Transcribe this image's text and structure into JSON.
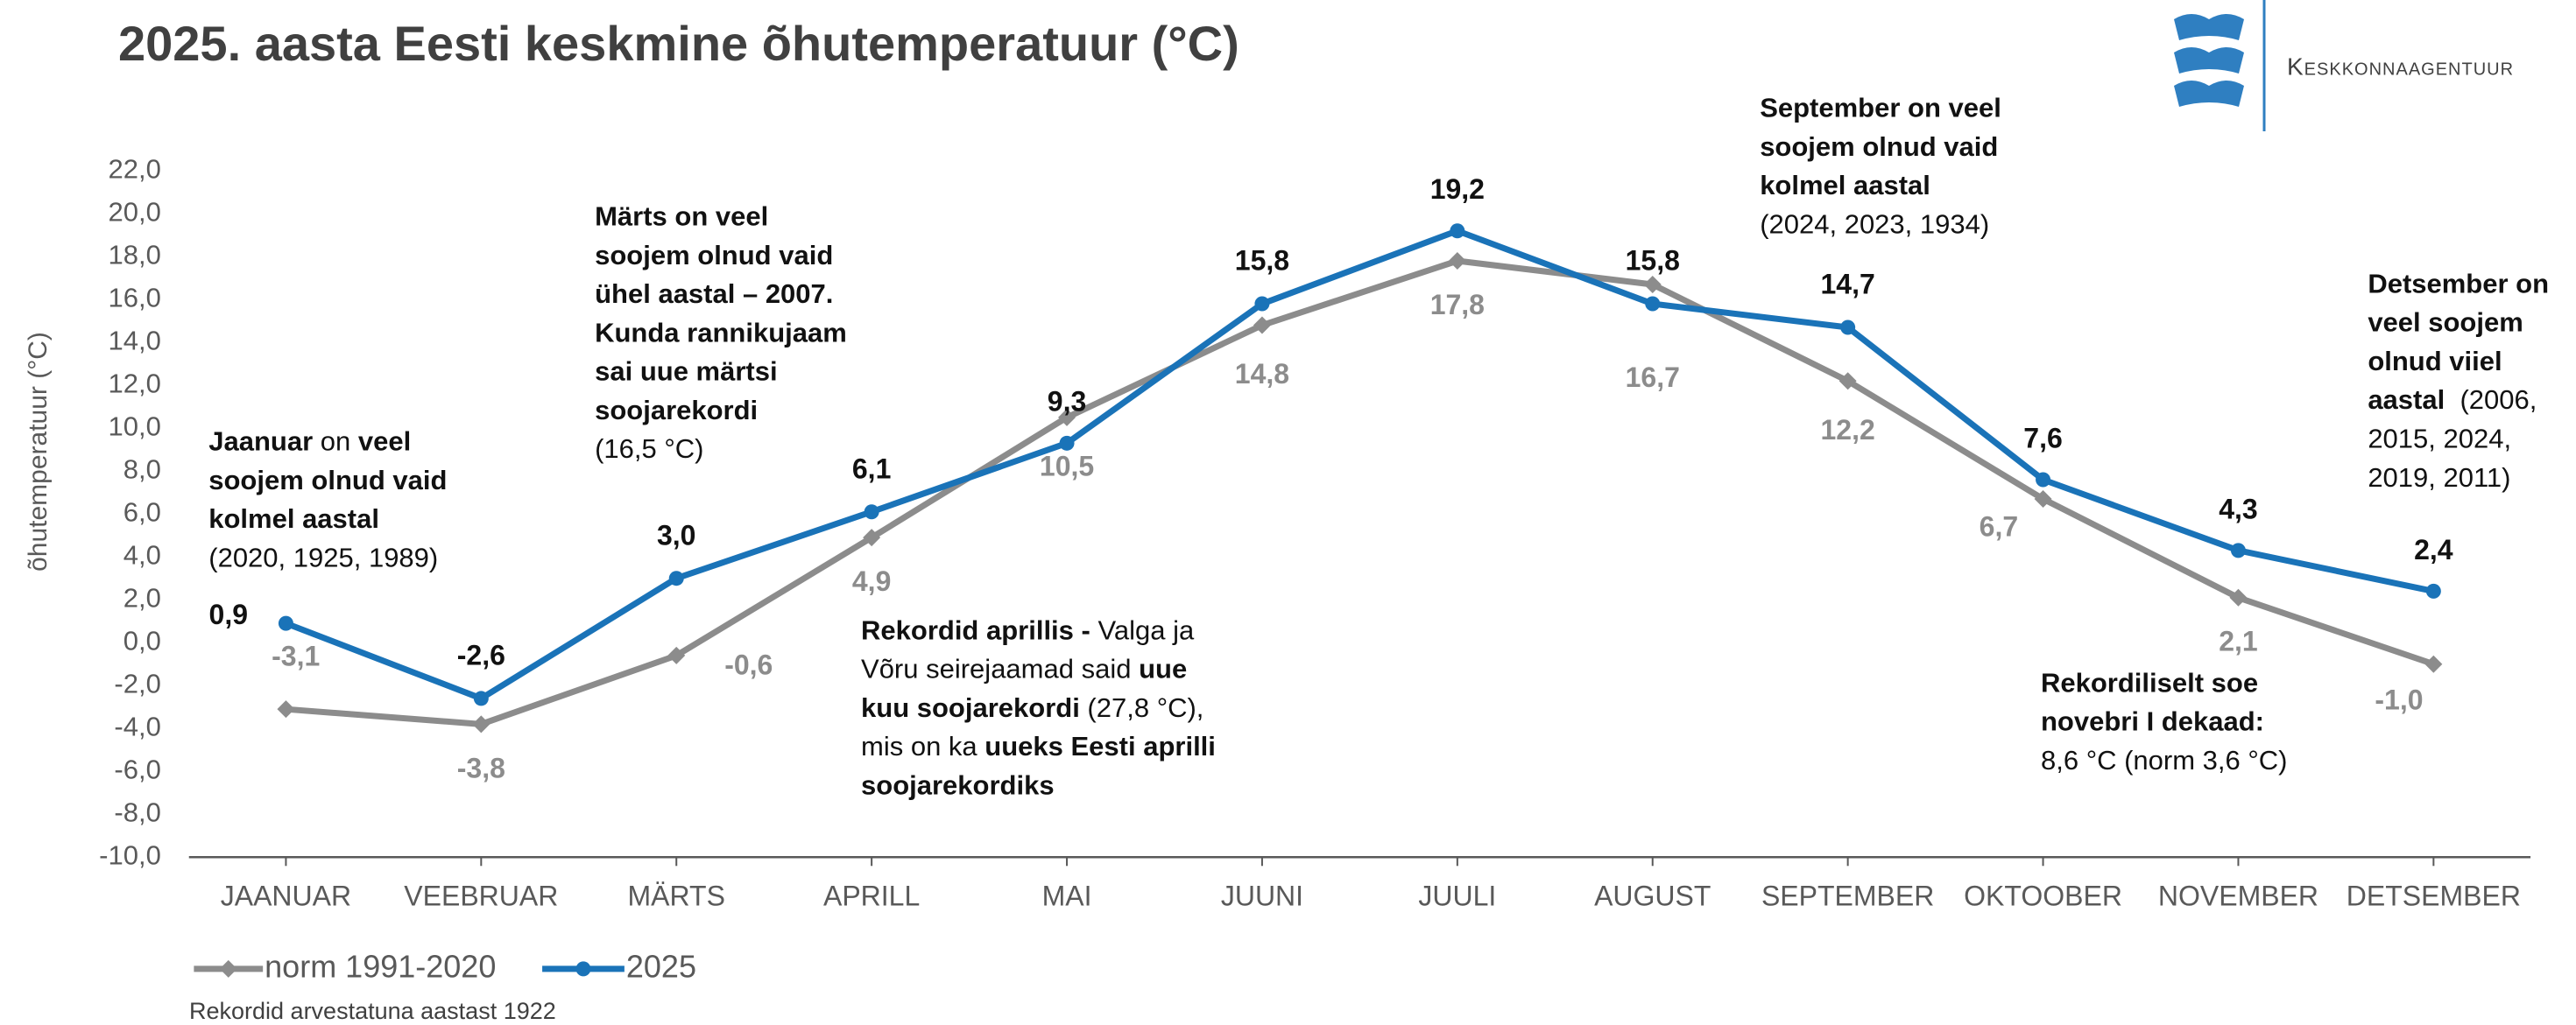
{
  "chart_data": {
    "type": "line",
    "title": "2025. aasta Eesti keskmine õhutemperatuur (°C)",
    "y_label": "õhutemperatuur  (°C)",
    "footnote": "Rekordid arvestatuna aastast 1922",
    "logo_text": "Keskkonnaagentuur",
    "categories": [
      "JAANUAR",
      "VEEBRUAR",
      "MÄRTS",
      "APRILL",
      "MAI",
      "JUUNI",
      "JUULI",
      "AUGUST",
      "SEPTEMBER",
      "OKTOOBER",
      "NOVEMBER",
      "DETSEMBER"
    ],
    "series": [
      {
        "name": "norm 1991-2020",
        "color": "#8c8c8c",
        "marker": "diamond",
        "values": [
          -3.1,
          -3.8,
          -0.6,
          4.9,
          10.5,
          14.8,
          17.8,
          16.7,
          12.2,
          6.7,
          2.1,
          -1.0
        ],
        "value_labels": [
          "-3,1",
          "-3,8",
          "-0,6",
          "4,9",
          "10,5",
          "14,8",
          "17,8",
          "16,7",
          "12,2",
          "6,7",
          "2,1",
          "-1,0"
        ]
      },
      {
        "name": "2025",
        "color": "#1a73b8",
        "marker": "circle",
        "values": [
          0.9,
          -2.6,
          3.0,
          6.1,
          9.3,
          15.8,
          19.2,
          15.8,
          14.7,
          7.6,
          4.3,
          2.4
        ],
        "value_labels": [
          "0,9",
          "-2,6",
          "3,0",
          "6,1",
          "9,3",
          "15,8",
          "19,2",
          "15,8",
          "14,7",
          "7,6",
          "4,3",
          "2,4"
        ]
      }
    ],
    "ylim": [
      -10,
      22
    ],
    "yticks": [
      {
        "value": -10,
        "label": "-10,0"
      },
      {
        "value": -8,
        "label": "-8,0"
      },
      {
        "value": -6,
        "label": "-6,0"
      },
      {
        "value": -4,
        "label": "-4,0"
      },
      {
        "value": -2,
        "label": "-2,0"
      },
      {
        "value": 0,
        "label": "0,0"
      },
      {
        "value": 2,
        "label": "2,0"
      },
      {
        "value": 4,
        "label": "4,0"
      },
      {
        "value": 6,
        "label": "6,0"
      },
      {
        "value": 8,
        "label": "8,0"
      },
      {
        "value": 10,
        "label": "10,0"
      },
      {
        "value": 12,
        "label": "12,0"
      },
      {
        "value": 14,
        "label": "14,0"
      },
      {
        "value": 16,
        "label": "16,0"
      },
      {
        "value": 18,
        "label": "18,0"
      },
      {
        "value": 20,
        "label": "20,0"
      },
      {
        "value": 22,
        "label": "22,0"
      }
    ],
    "grid": false,
    "legend": "bottom-left",
    "annotations": [
      [
        [
          {
            "text": "Jaanuar",
            "bold": true
          },
          {
            "text": " on ",
            "bold": false
          },
          {
            "text": "veel",
            "bold": true
          }
        ],
        [
          {
            "text": "soojem olnud vaid",
            "bold": true
          }
        ],
        [
          {
            "text": "kolmel aastal",
            "bold": true
          }
        ],
        [
          {
            "text": "(2020, 1925, 1989)",
            "bold": false
          }
        ]
      ],
      [
        [
          {
            "text": "Märts on veel",
            "bold": true
          }
        ],
        [
          {
            "text": "soojem olnud vaid",
            "bold": true
          }
        ],
        [
          {
            "text": "ühel aastal – 2007.",
            "bold": true
          }
        ],
        [
          {
            "text": "Kunda rannikujaam",
            "bold": true
          }
        ],
        [
          {
            "text": "sai uue märtsi",
            "bold": true
          }
        ],
        [
          {
            "text": "soojarekordi",
            "bold": true
          }
        ],
        [
          {
            "text": "(16,5 °C)",
            "bold": false
          }
        ]
      ],
      [
        [
          {
            "text": "Rekordid aprillis -",
            "bold": true
          },
          {
            "text": " Valga ja",
            "bold": false
          }
        ],
        [
          {
            "text": "Võru seirejaamad said ",
            "bold": false
          },
          {
            "text": "uue",
            "bold": true
          }
        ],
        [
          {
            "text": "kuu soojarekordi",
            "bold": true
          },
          {
            "text": " (27,8 °C),",
            "bold": false
          }
        ],
        [
          {
            "text": "mis on ka ",
            "bold": false
          },
          {
            "text": "uueks Eesti aprilli",
            "bold": true
          }
        ],
        [
          {
            "text": "soojarekordiks",
            "bold": true
          }
        ]
      ],
      [
        [
          {
            "text": "September on veel",
            "bold": true
          }
        ],
        [
          {
            "text": "soojem olnud vaid",
            "bold": true
          }
        ],
        [
          {
            "text": "kolmel aastal",
            "bold": true
          }
        ],
        [
          {
            "text": "(2024, 2023, 1934)",
            "bold": false
          }
        ]
      ],
      [
        [
          {
            "text": "Detsember on",
            "bold": true
          }
        ],
        [
          {
            "text": "veel soojem",
            "bold": true
          }
        ],
        [
          {
            "text": "olnud viiel",
            "bold": true
          }
        ],
        [
          {
            "text": "aastal",
            "bold": true
          },
          {
            "text": "  (2006,",
            "bold": false
          }
        ],
        [
          {
            "text": "2015, 2024,",
            "bold": false
          }
        ],
        [
          {
            "text": "2019, 2011)",
            "bold": false
          }
        ]
      ],
      [
        [
          {
            "text": "Rekordiliselt soe",
            "bold": true
          }
        ],
        [
          {
            "text": "novebri I dekaad:",
            "bold": true
          }
        ],
        [
          {
            "text": "8,6 °C (norm 3,6 °C)",
            "bold": false
          }
        ]
      ]
    ]
  }
}
